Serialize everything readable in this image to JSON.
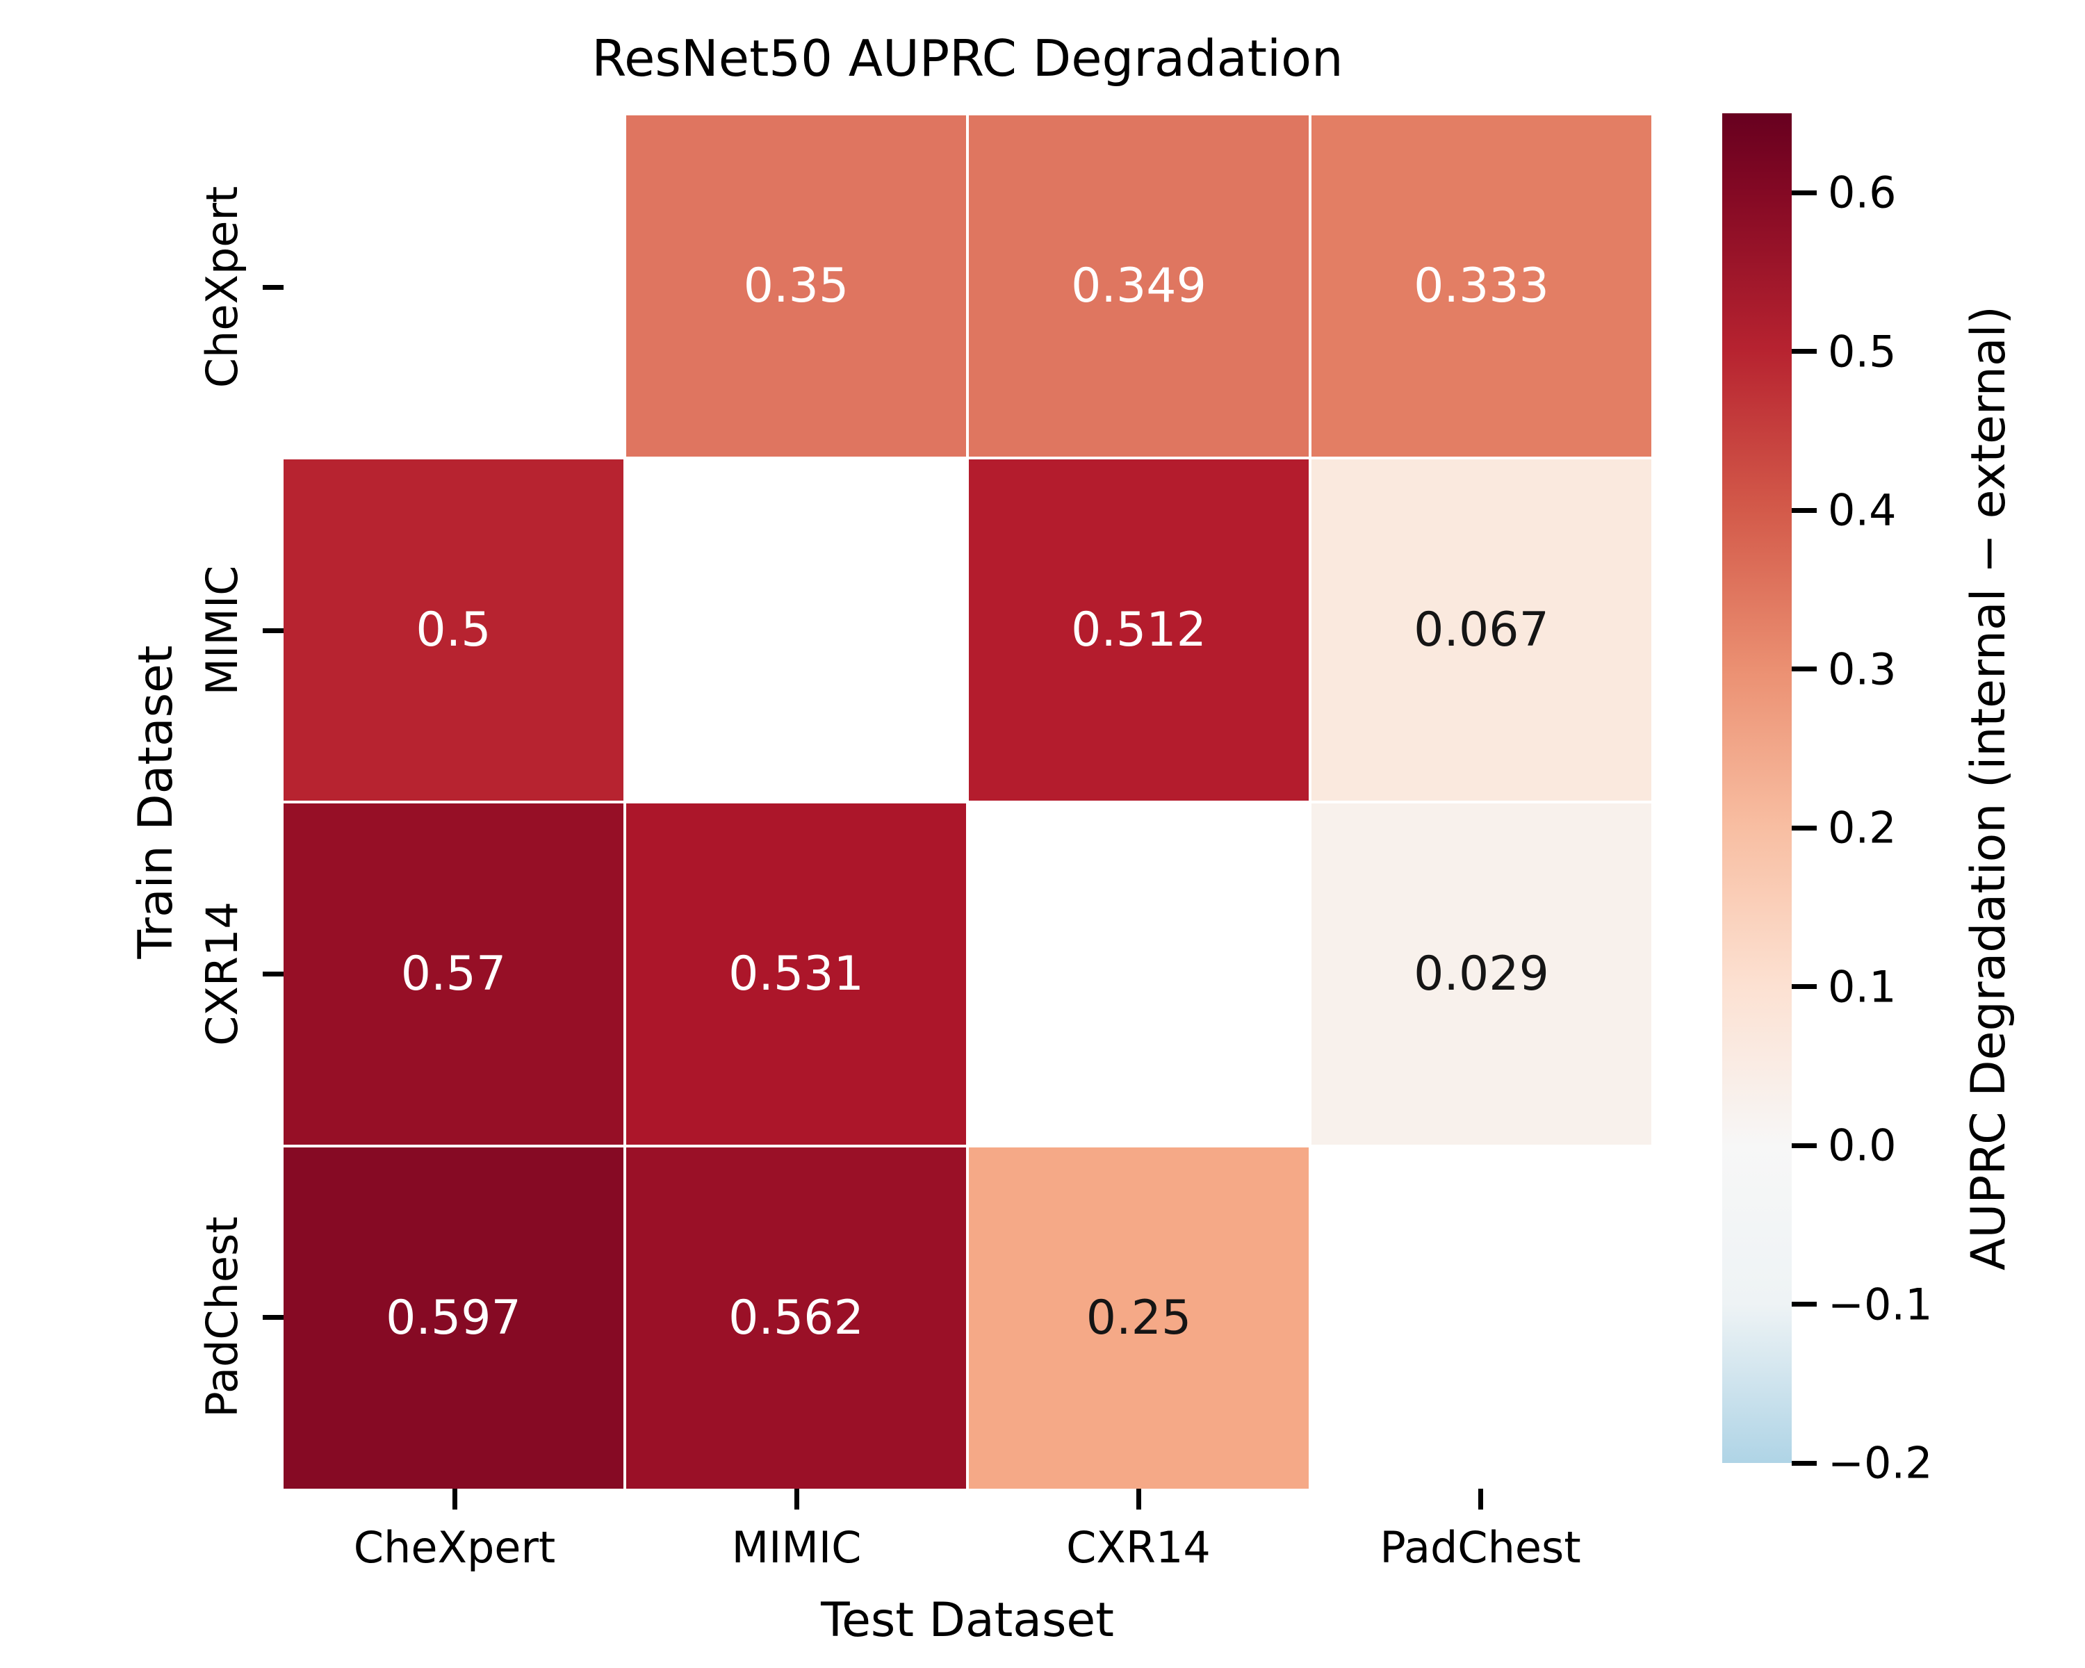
{
  "chart_data": {
    "type": "heatmap",
    "title": "ResNet50 AUPRC Degradation",
    "xlabel": "Test Dataset",
    "ylabel": "Train Dataset",
    "x_categories": [
      "CheXpert",
      "MIMIC",
      "CXR14",
      "PadChest"
    ],
    "y_categories": [
      "CheXpert",
      "MIMIC",
      "CXR14",
      "PadChest"
    ],
    "missing_cells_note_color": "#ffffff",
    "rows": [
      {
        "train": "CheXpert",
        "cells": [
          null,
          {
            "value": 0.35,
            "label": "0.35",
            "color": "#df7560",
            "text_color": "#ffffff"
          },
          {
            "value": 0.349,
            "label": "0.349",
            "color": "#df7660",
            "text_color": "#ffffff"
          },
          {
            "value": 0.333,
            "label": "0.333",
            "color": "#e37e64",
            "text_color": "#ffffff"
          }
        ]
      },
      {
        "train": "MIMIC",
        "cells": [
          {
            "value": 0.5,
            "label": "0.5",
            "color": "#b72330",
            "text_color": "#ffffff"
          },
          null,
          {
            "value": 0.512,
            "label": "0.512",
            "color": "#b41c2d",
            "text_color": "#ffffff"
          },
          {
            "value": 0.067,
            "label": "0.067",
            "color": "#fae9de",
            "text_color": "#151515"
          }
        ]
      },
      {
        "train": "CXR14",
        "cells": [
          {
            "value": 0.57,
            "label": "0.57",
            "color": "#960f26",
            "text_color": "#ffffff"
          },
          {
            "value": 0.531,
            "label": "0.531",
            "color": "#ac162a",
            "text_color": "#ffffff"
          },
          null,
          {
            "value": 0.029,
            "label": "0.029",
            "color": "#f8f1ec",
            "text_color": "#151515"
          }
        ]
      },
      {
        "train": "PadChest",
        "cells": [
          {
            "value": 0.597,
            "label": "0.597",
            "color": "#860a24",
            "text_color": "#ffffff"
          },
          {
            "value": 0.562,
            "label": "0.562",
            "color": "#9a1027",
            "text_color": "#ffffff"
          },
          {
            "value": 0.25,
            "label": "0.25",
            "color": "#f5a987",
            "text_color": "#151515"
          },
          null
        ]
      }
    ],
    "colorbar": {
      "label": "AUPRC Degradation (internal − external)",
      "vmin": -0.2,
      "vmax": 0.65,
      "ticks": [
        {
          "value": 0.6,
          "label": "0.6"
        },
        {
          "value": 0.5,
          "label": "0.5"
        },
        {
          "value": 0.4,
          "label": "0.4"
        },
        {
          "value": 0.3,
          "label": "0.3"
        },
        {
          "value": 0.2,
          "label": "0.2"
        },
        {
          "value": 0.1,
          "label": "0.1"
        },
        {
          "value": 0.0,
          "label": "0.0"
        },
        {
          "value": -0.1,
          "label": "−0.1"
        },
        {
          "value": -0.2,
          "label": "−0.2"
        }
      ],
      "gradient_stops": [
        {
          "pos": 0,
          "color": "#67001f"
        },
        {
          "pos": 5.9,
          "color": "#840924"
        },
        {
          "pos": 17.6,
          "color": "#b72330"
        },
        {
          "pos": 29.4,
          "color": "#d35a4a"
        },
        {
          "pos": 41.2,
          "color": "#eb9072"
        },
        {
          "pos": 52.9,
          "color": "#f8bea2"
        },
        {
          "pos": 64.7,
          "color": "#fce1d2"
        },
        {
          "pos": 76.5,
          "color": "#f7f7f7"
        },
        {
          "pos": 88.2,
          "color": "#eef3f5"
        },
        {
          "pos": 100,
          "color": "#afd4e6"
        }
      ]
    }
  }
}
